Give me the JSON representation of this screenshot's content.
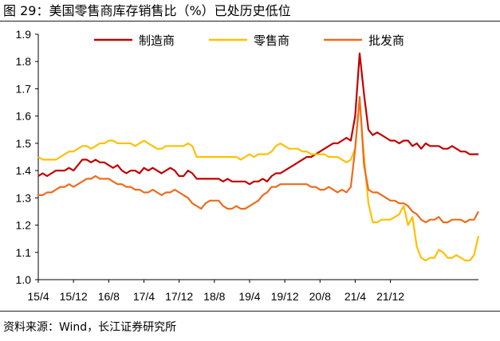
{
  "figure": {
    "title": "图 29：美国零售商库存销售比（%）已处历史低位",
    "source": "资料来源：Wind，长江证券研究所"
  },
  "chart_data": {
    "type": "line",
    "ylim": [
      1.0,
      1.9
    ],
    "y_ticks": [
      "1.0",
      "1.1",
      "1.2",
      "1.3",
      "1.4",
      "1.5",
      "1.6",
      "1.7",
      "1.8",
      "1.9"
    ],
    "x_ticks": [
      "15/4",
      "15/12",
      "16/8",
      "17/4",
      "17/12",
      "18/8",
      "19/4",
      "19/12",
      "20/8",
      "21/4",
      "21/12"
    ],
    "legend_position": "top",
    "grid": false,
    "x_start": "2015-04",
    "x_end": "2021-12",
    "series": [
      {
        "name": "制造商",
        "color": "#c00000",
        "values": [
          1.38,
          1.39,
          1.38,
          1.39,
          1.4,
          1.4,
          1.4,
          1.41,
          1.4,
          1.42,
          1.44,
          1.44,
          1.43,
          1.44,
          1.43,
          1.43,
          1.42,
          1.41,
          1.42,
          1.4,
          1.39,
          1.4,
          1.4,
          1.39,
          1.41,
          1.4,
          1.41,
          1.4,
          1.39,
          1.4,
          1.41,
          1.4,
          1.38,
          1.38,
          1.4,
          1.39,
          1.37,
          1.37,
          1.37,
          1.37,
          1.37,
          1.37,
          1.36,
          1.37,
          1.36,
          1.36,
          1.36,
          1.36,
          1.35,
          1.36,
          1.36,
          1.37,
          1.36,
          1.38,
          1.39,
          1.39,
          1.4,
          1.41,
          1.42,
          1.43,
          1.44,
          1.45,
          1.45,
          1.46,
          1.47,
          1.48,
          1.49,
          1.5,
          1.5,
          1.51,
          1.52,
          1.51,
          1.6,
          1.83,
          1.68,
          1.55,
          1.53,
          1.54,
          1.53,
          1.52,
          1.51,
          1.51,
          1.5,
          1.51,
          1.51,
          1.49,
          1.5,
          1.48,
          1.5,
          1.49,
          1.49,
          1.49,
          1.48,
          1.48,
          1.49,
          1.48,
          1.47,
          1.47,
          1.46,
          1.46,
          1.46
        ]
      },
      {
        "name": "零售商",
        "color": "#ffc000",
        "values": [
          1.45,
          1.44,
          1.44,
          1.44,
          1.44,
          1.45,
          1.46,
          1.47,
          1.47,
          1.48,
          1.49,
          1.49,
          1.48,
          1.49,
          1.5,
          1.5,
          1.51,
          1.51,
          1.5,
          1.5,
          1.5,
          1.5,
          1.49,
          1.5,
          1.51,
          1.5,
          1.49,
          1.48,
          1.48,
          1.49,
          1.49,
          1.49,
          1.49,
          1.49,
          1.5,
          1.49,
          1.45,
          1.45,
          1.45,
          1.45,
          1.45,
          1.45,
          1.45,
          1.45,
          1.45,
          1.45,
          1.44,
          1.45,
          1.46,
          1.45,
          1.46,
          1.46,
          1.46,
          1.47,
          1.49,
          1.5,
          1.49,
          1.48,
          1.48,
          1.48,
          1.47,
          1.47,
          1.46,
          1.46,
          1.46,
          1.46,
          1.45,
          1.45,
          1.45,
          1.44,
          1.43,
          1.44,
          1.48,
          1.66,
          1.45,
          1.28,
          1.21,
          1.21,
          1.22,
          1.22,
          1.22,
          1.23,
          1.24,
          1.27,
          1.2,
          1.23,
          1.12,
          1.08,
          1.07,
          1.08,
          1.08,
          1.11,
          1.1,
          1.08,
          1.08,
          1.09,
          1.08,
          1.07,
          1.07,
          1.09,
          1.16
        ]
      },
      {
        "name": "批发商",
        "color": "#ee6b1c",
        "values": [
          1.31,
          1.31,
          1.32,
          1.32,
          1.33,
          1.34,
          1.34,
          1.35,
          1.34,
          1.35,
          1.36,
          1.37,
          1.37,
          1.38,
          1.37,
          1.37,
          1.37,
          1.36,
          1.35,
          1.35,
          1.34,
          1.34,
          1.33,
          1.33,
          1.32,
          1.32,
          1.33,
          1.32,
          1.31,
          1.32,
          1.32,
          1.33,
          1.32,
          1.31,
          1.3,
          1.28,
          1.27,
          1.26,
          1.28,
          1.29,
          1.29,
          1.29,
          1.27,
          1.26,
          1.26,
          1.27,
          1.26,
          1.26,
          1.27,
          1.28,
          1.29,
          1.31,
          1.32,
          1.34,
          1.34,
          1.35,
          1.35,
          1.35,
          1.35,
          1.35,
          1.35,
          1.35,
          1.34,
          1.34,
          1.33,
          1.33,
          1.34,
          1.33,
          1.32,
          1.33,
          1.32,
          1.34,
          1.48,
          1.67,
          1.42,
          1.33,
          1.32,
          1.32,
          1.31,
          1.3,
          1.29,
          1.29,
          1.28,
          1.28,
          1.27,
          1.25,
          1.24,
          1.22,
          1.21,
          1.22,
          1.22,
          1.23,
          1.21,
          1.21,
          1.22,
          1.22,
          1.22,
          1.21,
          1.22,
          1.22,
          1.25
        ]
      }
    ]
  }
}
